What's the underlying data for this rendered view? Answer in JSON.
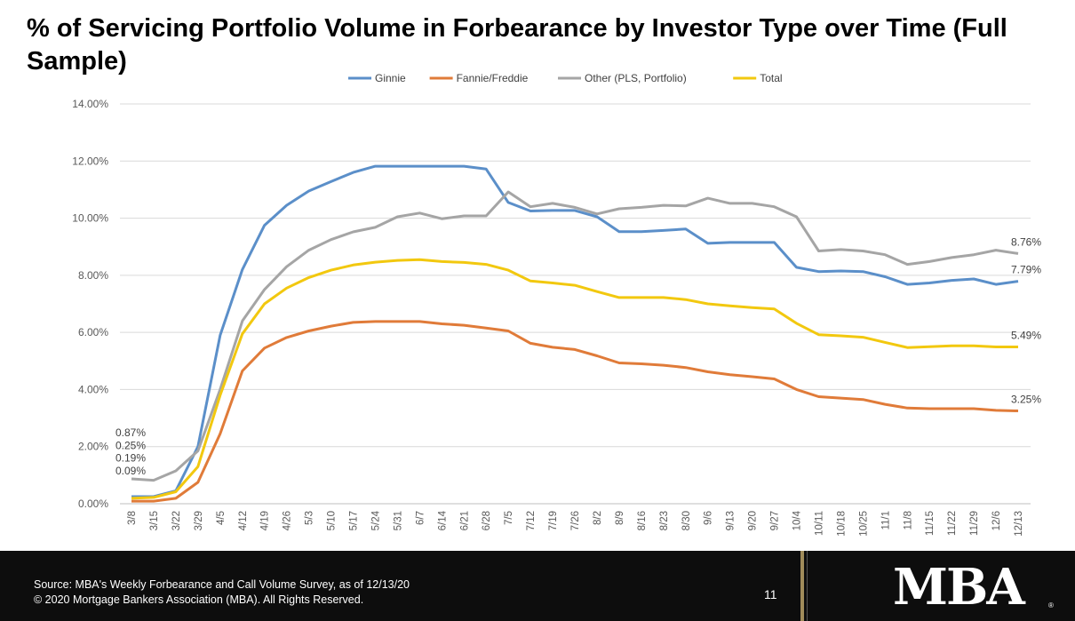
{
  "chart_data": {
    "type": "line",
    "title": "% of Servicing Portfolio Volume in Forbearance by Investor Type over Time (Full Sample)",
    "xlabel": "",
    "ylabel": "",
    "ylim": [
      0,
      14
    ],
    "yticks": [
      "0.00%",
      "2.00%",
      "4.00%",
      "6.00%",
      "8.00%",
      "10.00%",
      "12.00%",
      "14.00%"
    ],
    "grid": true,
    "legend_position": "top",
    "categories": [
      "3/8",
      "3/15",
      "3/22",
      "3/29",
      "4/5",
      "4/12",
      "4/19",
      "4/26",
      "5/3",
      "5/10",
      "5/17",
      "5/24",
      "5/31",
      "6/7",
      "6/14",
      "6/21",
      "6/28",
      "7/5",
      "7/12",
      "7/19",
      "7/26",
      "8/2",
      "8/9",
      "8/16",
      "8/23",
      "8/30",
      "9/6",
      "9/13",
      "9/20",
      "9/27",
      "10/4",
      "10/11",
      "10/18",
      "10/25",
      "11/1",
      "11/8",
      "11/15",
      "11/22",
      "11/29",
      "12/6",
      "12/13"
    ],
    "series": [
      {
        "name": "Ginnie",
        "color": "#5b8fc9",
        "values": [
          0.25,
          0.25,
          0.45,
          2.0,
          5.9,
          8.2,
          9.75,
          10.45,
          10.95,
          11.28,
          11.6,
          11.82,
          11.82,
          11.82,
          11.82,
          11.82,
          11.72,
          10.55,
          10.25,
          10.27,
          10.27,
          10.05,
          9.53,
          9.53,
          9.57,
          9.62,
          9.12,
          9.15,
          9.15,
          9.15,
          8.28,
          8.13,
          8.15,
          8.13,
          7.95,
          7.68,
          7.73,
          7.82,
          7.87,
          7.68,
          7.79
        ]
      },
      {
        "name": "Fannie/Freddie",
        "color": "#e07b39",
        "values": [
          0.09,
          0.09,
          0.19,
          0.75,
          2.45,
          4.65,
          5.45,
          5.82,
          6.05,
          6.22,
          6.35,
          6.38,
          6.38,
          6.38,
          6.3,
          6.25,
          6.15,
          6.05,
          5.62,
          5.48,
          5.4,
          5.18,
          4.93,
          4.9,
          4.85,
          4.77,
          4.62,
          4.52,
          4.45,
          4.37,
          4.0,
          3.75,
          3.7,
          3.65,
          3.48,
          3.35,
          3.33,
          3.33,
          3.33,
          3.27,
          3.25
        ]
      },
      {
        "name": "Other (PLS, Portfolio)",
        "color": "#a5a5a5",
        "values": [
          0.87,
          0.82,
          1.15,
          1.85,
          4.0,
          6.4,
          7.5,
          8.3,
          8.88,
          9.25,
          9.52,
          9.68,
          10.05,
          10.18,
          9.98,
          10.08,
          10.08,
          10.92,
          10.4,
          10.52,
          10.38,
          10.15,
          10.33,
          10.38,
          10.45,
          10.43,
          10.7,
          10.52,
          10.52,
          10.4,
          10.05,
          8.85,
          8.9,
          8.85,
          8.72,
          8.38,
          8.48,
          8.62,
          8.72,
          8.88,
          8.76
        ]
      },
      {
        "name": "Total",
        "color": "#f2c80f",
        "values": [
          0.19,
          0.22,
          0.42,
          1.3,
          3.8,
          5.95,
          7.0,
          7.55,
          7.92,
          8.18,
          8.36,
          8.46,
          8.52,
          8.55,
          8.48,
          8.45,
          8.38,
          8.18,
          7.8,
          7.73,
          7.65,
          7.43,
          7.22,
          7.22,
          7.22,
          7.15,
          7.0,
          6.93,
          6.87,
          6.82,
          6.32,
          5.92,
          5.88,
          5.83,
          5.65,
          5.47,
          5.5,
          5.53,
          5.53,
          5.49,
          5.49
        ]
      }
    ],
    "annotations_start": [
      "0.87%",
      "0.25%",
      "0.19%",
      "0.09%"
    ],
    "annotations_end": [
      {
        "series": "Other (PLS, Portfolio)",
        "text": "8.76%"
      },
      {
        "series": "Ginnie",
        "text": "7.79%"
      },
      {
        "series": "Total",
        "text": "5.49%"
      },
      {
        "series": "Fannie/Freddie",
        "text": "3.25%"
      }
    ]
  },
  "footer": {
    "source": "Source: MBA's Weekly Forbearance and Call Volume Survey, as of 12/13/20",
    "copyright": "© 2020 Mortgage Bankers Association (MBA). All Rights Reserved.",
    "page_number": "11",
    "logo": "MBA"
  }
}
